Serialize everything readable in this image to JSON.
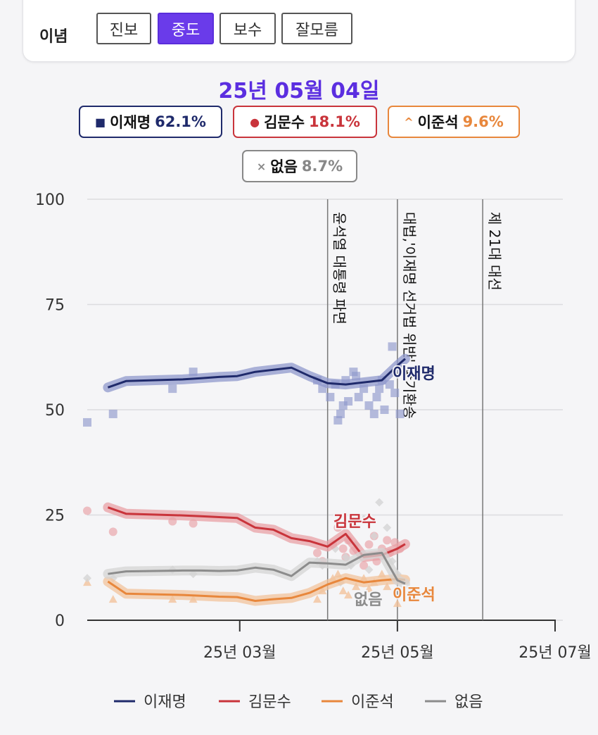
{
  "filter": {
    "label": "이념",
    "options": [
      "진보",
      "중도",
      "보수",
      "잘모름"
    ],
    "selected": "중도"
  },
  "date_title": "25년 05월 04일",
  "summary_chips": [
    {
      "name": "이재명",
      "value": "62.1%",
      "color": "#1f2a6b",
      "symbol": "■"
    },
    {
      "name": "김문수",
      "value": "18.1%",
      "color": "#c9343b",
      "symbol": "●"
    },
    {
      "name": "이준석",
      "value": "9.6%",
      "color": "#e8873c",
      "symbol": "^"
    },
    {
      "name": "없음",
      "value": "8.7%",
      "color": "#888888",
      "symbol": "×"
    }
  ],
  "chart_data": {
    "type": "line",
    "ylim": [
      0,
      100
    ],
    "yticks": [
      0,
      25,
      50,
      75,
      100
    ],
    "xlim": [
      "2025-01-01",
      "2025-07-04"
    ],
    "xticks": [
      {
        "date": "2025-03-01",
        "label": "25년 03월"
      },
      {
        "date": "2025-05-01",
        "label": "25년 05월"
      },
      {
        "date": "2025-07-01",
        "label": "25년 07월"
      }
    ],
    "grid": true,
    "legend_position": "bottom",
    "events": [
      {
        "date": "2025-04-04",
        "label": "윤석열 대통령 파면"
      },
      {
        "date": "2025-05-01",
        "label": "대법,'이재명 선거법 위반' 파기환송"
      },
      {
        "date": "2025-06-03",
        "label": "제 21대 대선"
      }
    ],
    "series": [
      {
        "name": "이재명",
        "color": "#1f2a6b",
        "band": "#8f98cc",
        "marker": "square",
        "label_end": "이재명",
        "dates": [
          "2025-01-09",
          "2025-01-16",
          "2025-02-07",
          "2025-02-14",
          "2025-02-21",
          "2025-02-28",
          "2025-03-07",
          "2025-03-14",
          "2025-03-21",
          "2025-03-28",
          "2025-04-04",
          "2025-04-11",
          "2025-04-18",
          "2025-04-25",
          "2025-05-01",
          "2025-05-04"
        ],
        "values": [
          55.3,
          56.8,
          57.2,
          57.5,
          57.8,
          58.0,
          59.0,
          59.5,
          60.0,
          58.0,
          56.3,
          56.0,
          56.5,
          57.0,
          60.5,
          62.1
        ],
        "points": [
          [
            "2025-01-01",
            47
          ],
          [
            "2025-01-11",
            49
          ],
          [
            "2025-02-03",
            55
          ],
          [
            "2025-02-11",
            59
          ],
          [
            "2025-03-31",
            57
          ],
          [
            "2025-04-02",
            55
          ],
          [
            "2025-04-05",
            53
          ],
          [
            "2025-04-07",
            56
          ],
          [
            "2025-04-08",
            47.5
          ],
          [
            "2025-04-09",
            49
          ],
          [
            "2025-04-10",
            51
          ],
          [
            "2025-04-11",
            57
          ],
          [
            "2025-04-12",
            52
          ],
          [
            "2025-04-14",
            59
          ],
          [
            "2025-04-15",
            58
          ],
          [
            "2025-04-16",
            53
          ],
          [
            "2025-04-18",
            55
          ],
          [
            "2025-04-20",
            51
          ],
          [
            "2025-04-22",
            49
          ],
          [
            "2025-04-23",
            53
          ],
          [
            "2025-04-24",
            55
          ],
          [
            "2025-04-25",
            57
          ],
          [
            "2025-04-26",
            50
          ],
          [
            "2025-04-28",
            56
          ],
          [
            "2025-04-30",
            54
          ],
          [
            "2025-05-02",
            49
          ],
          [
            "2025-04-29",
            65
          ]
        ]
      },
      {
        "name": "김문수",
        "color": "#c9343b",
        "band": "#e8a0a6",
        "marker": "circle",
        "label_end": "김문수",
        "dates": [
          "2025-01-09",
          "2025-01-16",
          "2025-02-07",
          "2025-02-14",
          "2025-02-21",
          "2025-02-28",
          "2025-03-07",
          "2025-03-14",
          "2025-03-21",
          "2025-03-28",
          "2025-04-04",
          "2025-04-11",
          "2025-04-18",
          "2025-04-25",
          "2025-05-01",
          "2025-05-04"
        ],
        "values": [
          26.8,
          25.3,
          24.9,
          24.7,
          24.5,
          24.3,
          22.0,
          21.5,
          19.5,
          18.8,
          17.5,
          20.5,
          15.0,
          15.5,
          17.0,
          18.1
        ],
        "points": [
          [
            "2025-01-01",
            26
          ],
          [
            "2025-01-11",
            21
          ],
          [
            "2025-02-03",
            23.5
          ],
          [
            "2025-02-11",
            23
          ],
          [
            "2025-03-31",
            16
          ],
          [
            "2025-04-02",
            14
          ],
          [
            "2025-04-06",
            18
          ],
          [
            "2025-04-08",
            22
          ],
          [
            "2025-04-10",
            17
          ],
          [
            "2025-04-11",
            15
          ],
          [
            "2025-04-12",
            19
          ],
          [
            "2025-04-14",
            16.5
          ],
          [
            "2025-04-18",
            13
          ],
          [
            "2025-04-20",
            18
          ],
          [
            "2025-04-22",
            20
          ],
          [
            "2025-04-23",
            14
          ],
          [
            "2025-04-25",
            17
          ],
          [
            "2025-04-27",
            19
          ],
          [
            "2025-04-28",
            16
          ],
          [
            "2025-04-30",
            18.5
          ],
          [
            "2025-05-02",
            17
          ]
        ]
      },
      {
        "name": "이준석",
        "color": "#e8873c",
        "band": "#f2c39c",
        "marker": "triangle",
        "label_end": "이준석",
        "dates": [
          "2025-01-09",
          "2025-01-16",
          "2025-02-07",
          "2025-02-14",
          "2025-02-21",
          "2025-02-28",
          "2025-03-07",
          "2025-03-14",
          "2025-03-21",
          "2025-03-28",
          "2025-04-04",
          "2025-04-11",
          "2025-04-18",
          "2025-04-25",
          "2025-05-01",
          "2025-05-04"
        ],
        "values": [
          9.2,
          6.3,
          6.0,
          5.8,
          5.6,
          5.5,
          4.6,
          5.0,
          5.3,
          6.5,
          8.5,
          10.0,
          9.0,
          9.5,
          9.8,
          9.6
        ],
        "points": [
          [
            "2025-01-01",
            9
          ],
          [
            "2025-01-11",
            5
          ],
          [
            "2025-02-03",
            5
          ],
          [
            "2025-02-11",
            5
          ],
          [
            "2025-03-31",
            5
          ],
          [
            "2025-04-02",
            7
          ],
          [
            "2025-04-06",
            10
          ],
          [
            "2025-04-08",
            11
          ],
          [
            "2025-04-10",
            7
          ],
          [
            "2025-04-12",
            6
          ],
          [
            "2025-04-15",
            8
          ],
          [
            "2025-04-18",
            10
          ],
          [
            "2025-04-20",
            7.5
          ],
          [
            "2025-04-22",
            9
          ],
          [
            "2025-04-25",
            11
          ],
          [
            "2025-04-27",
            8
          ],
          [
            "2025-04-29",
            10
          ],
          [
            "2025-05-01",
            4
          ]
        ]
      },
      {
        "name": "없음",
        "color": "#8c8c8c",
        "band": "#d4d4d4",
        "marker": "diamond",
        "label_end": "없음",
        "dates": [
          "2025-01-09",
          "2025-01-16",
          "2025-02-07",
          "2025-02-14",
          "2025-02-21",
          "2025-02-28",
          "2025-03-07",
          "2025-03-14",
          "2025-03-21",
          "2025-03-28",
          "2025-04-04",
          "2025-04-11",
          "2025-04-18",
          "2025-04-25",
          "2025-05-01",
          "2025-05-04"
        ],
        "values": [
          11.0,
          11.6,
          11.8,
          11.8,
          11.7,
          11.8,
          12.5,
          12.0,
          10.5,
          13.7,
          13.5,
          13.2,
          15.5,
          16.0,
          9.5,
          8.7
        ],
        "points": [
          [
            "2025-01-01",
            10
          ],
          [
            "2025-01-11",
            10
          ],
          [
            "2025-02-03",
            12
          ],
          [
            "2025-02-11",
            11
          ],
          [
            "2025-03-31",
            14
          ],
          [
            "2025-04-02",
            13
          ],
          [
            "2025-04-07",
            17
          ],
          [
            "2025-04-09",
            9
          ],
          [
            "2025-04-11",
            15
          ],
          [
            "2025-04-13",
            13
          ],
          [
            "2025-04-15",
            18
          ],
          [
            "2025-04-18",
            24
          ],
          [
            "2025-04-20",
            12
          ],
          [
            "2025-04-22",
            20
          ],
          [
            "2025-04-24",
            28
          ],
          [
            "2025-04-26",
            16
          ],
          [
            "2025-04-27",
            22
          ],
          [
            "2025-04-29",
            14
          ],
          [
            "2025-05-01",
            11
          ]
        ]
      }
    ]
  }
}
